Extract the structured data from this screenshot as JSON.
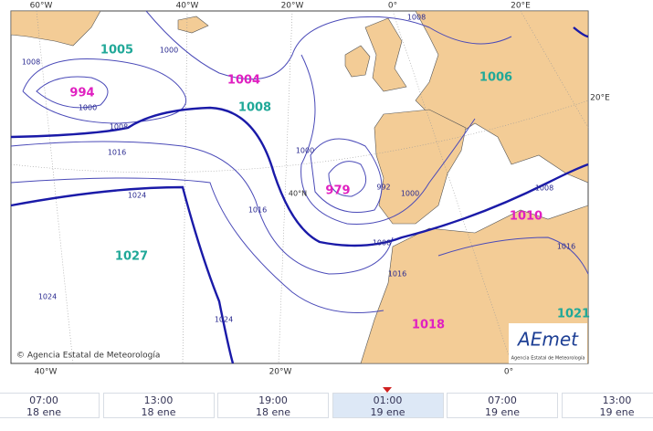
{
  "map": {
    "top_labels": [
      "60°W",
      "40°W",
      "20°W",
      "0°",
      "20°E"
    ],
    "right_label": "20°E",
    "bottom_labels": [
      "40°W",
      "20°W",
      "0°"
    ],
    "lat_label": "40°N",
    "pressure_centers": [
      {
        "label": "994",
        "color": "#e020c0"
      },
      {
        "label": "1005",
        "color": "#20a898"
      },
      {
        "label": "1004",
        "color": "#e020c0"
      },
      {
        "label": "1008",
        "color": "#20a898"
      },
      {
        "label": "979",
        "color": "#e020c0"
      },
      {
        "label": "1006",
        "color": "#20a898"
      },
      {
        "label": "1010",
        "color": "#e020c0"
      },
      {
        "label": "1027",
        "color": "#20a898"
      },
      {
        "label": "1018",
        "color": "#e020c0"
      },
      {
        "label": "1021",
        "color": "#20a898"
      }
    ],
    "isobar_labels": [
      "1008",
      "1000",
      "1008",
      "1000",
      "1008",
      "1016",
      "1024",
      "1000",
      "992",
      "1000",
      "1008",
      "1016",
      "1024",
      "1024",
      "1008",
      "1016",
      "1016"
    ],
    "credit": "© Agencia Estatal de Meteorología",
    "logo": {
      "name": "AEmet",
      "subtitle": "Agencia Estatal de Meteorología"
    }
  },
  "timeline": [
    {
      "time": "07:00",
      "date": "18 ene"
    },
    {
      "time": "13:00",
      "date": "18 ene"
    },
    {
      "time": "19:00",
      "date": "18 ene"
    },
    {
      "time": "01:00",
      "date": "19 ene"
    },
    {
      "time": "07:00",
      "date": "19 ene"
    },
    {
      "time": "13:00",
      "date": "19 ene"
    }
  ]
}
